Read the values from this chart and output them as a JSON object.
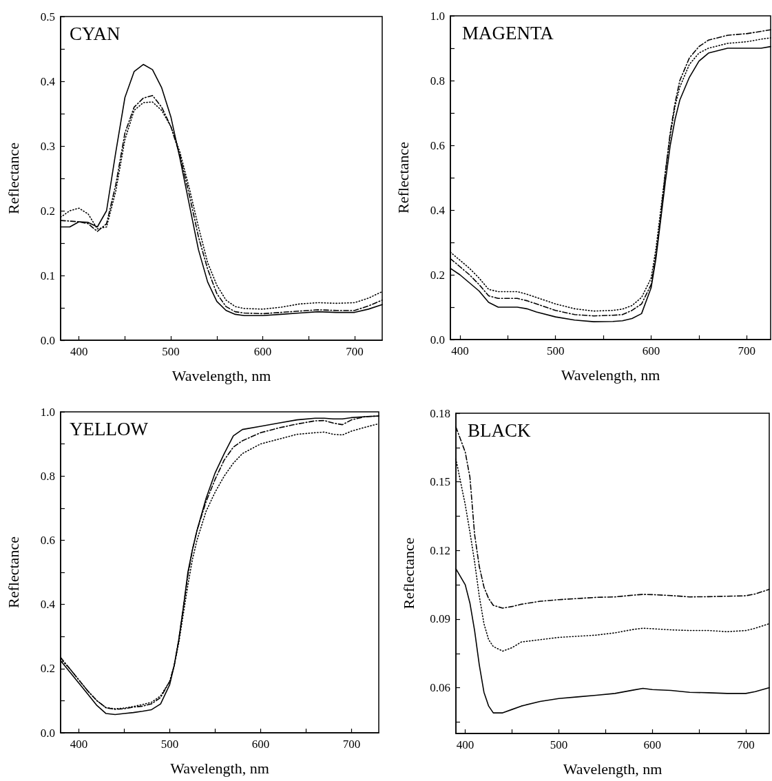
{
  "chart_data": [
    {
      "type": "line",
      "title": "CYAN",
      "xlabel": "Wavelength, nm",
      "ylabel": "Reflectance",
      "marker": "none",
      "x": [
        380,
        390,
        400,
        410,
        420,
        430,
        440,
        450,
        460,
        470,
        480,
        490,
        500,
        510,
        520,
        530,
        540,
        550,
        560,
        570,
        580,
        600,
        620,
        640,
        660,
        680,
        700,
        715,
        730
      ],
      "series": [
        {
          "color": "#000000",
          "line_style": "solid",
          "values": [
            0.175,
            0.175,
            0.183,
            0.182,
            0.175,
            0.2,
            0.29,
            0.375,
            0.415,
            0.426,
            0.418,
            0.39,
            0.345,
            0.28,
            0.21,
            0.14,
            0.09,
            0.06,
            0.046,
            0.04,
            0.038,
            0.038,
            0.04,
            0.042,
            0.044,
            0.043,
            0.043,
            0.048,
            0.055
          ]
        },
        {
          "color": "#000000",
          "line_style": "dashed",
          "values": [
            0.185,
            0.184,
            0.183,
            0.18,
            0.168,
            0.18,
            0.24,
            0.32,
            0.36,
            0.374,
            0.378,
            0.36,
            0.33,
            0.285,
            0.225,
            0.16,
            0.11,
            0.072,
            0.052,
            0.044,
            0.042,
            0.041,
            0.043,
            0.045,
            0.047,
            0.046,
            0.046,
            0.053,
            0.062
          ]
        },
        {
          "color": "#000000",
          "line_style": "dotted",
          "values": [
            0.19,
            0.2,
            0.204,
            0.195,
            0.172,
            0.175,
            0.23,
            0.31,
            0.355,
            0.367,
            0.368,
            0.355,
            0.33,
            0.29,
            0.235,
            0.175,
            0.12,
            0.085,
            0.062,
            0.052,
            0.049,
            0.048,
            0.051,
            0.056,
            0.058,
            0.057,
            0.058,
            0.065,
            0.075
          ]
        }
      ],
      "xlim": [
        380,
        730
      ],
      "xticks": [
        400,
        {
          "value": 450,
          "label": null
        },
        500,
        {
          "value": 550,
          "label": null
        },
        600,
        {
          "value": 650,
          "label": null
        },
        700
      ],
      "ylim": [
        0,
        0.5
      ],
      "yticks": [
        {
          "value": 0,
          "label": "0.0"
        },
        {
          "value": 0.05,
          "label": null
        },
        0.1,
        {
          "value": 0.15,
          "label": null
        },
        0.2,
        {
          "value": 0.25,
          "label": null
        },
        0.3,
        {
          "value": 0.35,
          "label": null
        },
        0.4,
        {
          "value": 0.45,
          "label": null
        },
        0.5
      ]
    },
    {
      "type": "line",
      "title": "MAGENTA",
      "xlabel": "Wavelength, nm",
      "ylabel": "Reflectance",
      "marker": "none",
      "x": [
        390,
        400,
        410,
        420,
        430,
        440,
        460,
        470,
        480,
        500,
        520,
        540,
        560,
        570,
        580,
        590,
        600,
        605,
        610,
        615,
        620,
        625,
        630,
        640,
        650,
        660,
        680,
        700,
        715,
        725
      ],
      "series": [
        {
          "color": "#000000",
          "line_style": "solid",
          "values": [
            0.22,
            0.2,
            0.175,
            0.15,
            0.115,
            0.1,
            0.1,
            0.095,
            0.085,
            0.07,
            0.06,
            0.055,
            0.056,
            0.058,
            0.065,
            0.08,
            0.16,
            0.25,
            0.37,
            0.49,
            0.6,
            0.68,
            0.74,
            0.81,
            0.86,
            0.885,
            0.9,
            0.9,
            0.9,
            0.905
          ]
        },
        {
          "color": "#000000",
          "line_style": "dashed",
          "values": [
            0.25,
            0.225,
            0.2,
            0.17,
            0.135,
            0.127,
            0.127,
            0.12,
            0.11,
            0.09,
            0.077,
            0.073,
            0.075,
            0.077,
            0.09,
            0.11,
            0.17,
            0.26,
            0.38,
            0.52,
            0.64,
            0.73,
            0.8,
            0.87,
            0.905,
            0.925,
            0.94,
            0.945,
            0.952,
            0.957
          ]
        },
        {
          "color": "#000000",
          "line_style": "dotted",
          "values": [
            0.27,
            0.245,
            0.22,
            0.19,
            0.155,
            0.148,
            0.148,
            0.14,
            0.13,
            0.11,
            0.095,
            0.088,
            0.09,
            0.094,
            0.105,
            0.13,
            0.19,
            0.28,
            0.4,
            0.52,
            0.63,
            0.72,
            0.78,
            0.85,
            0.885,
            0.9,
            0.915,
            0.92,
            0.928,
            0.932
          ]
        }
      ],
      "xlim": [
        390,
        725
      ],
      "xticks": [
        400,
        {
          "value": 450,
          "label": null
        },
        500,
        {
          "value": 550,
          "label": null
        },
        600,
        {
          "value": 650,
          "label": null
        },
        700
      ],
      "ylim": [
        0,
        1
      ],
      "yticks": [
        {
          "value": 0,
          "label": "0.0"
        },
        {
          "value": 0.1,
          "label": null
        },
        0.2,
        {
          "value": 0.3,
          "label": null
        },
        0.4,
        {
          "value": 0.5,
          "label": null
        },
        0.6,
        {
          "value": 0.7,
          "label": null
        },
        0.8,
        {
          "value": 0.9,
          "label": null
        },
        {
          "value": 1,
          "label": "1.0"
        }
      ]
    },
    {
      "type": "line",
      "title": "YELLOW",
      "xlabel": "Wavelength, nm",
      "ylabel": "Reflectance",
      "marker": "none",
      "x": [
        380,
        390,
        400,
        410,
        420,
        430,
        440,
        450,
        460,
        470,
        480,
        490,
        500,
        505,
        510,
        515,
        520,
        525,
        530,
        540,
        550,
        560,
        570,
        580,
        600,
        620,
        640,
        660,
        670,
        680,
        690,
        700,
        715,
        730
      ],
      "series": [
        {
          "color": "#000000",
          "line_style": "solid",
          "values": [
            0.225,
            0.19,
            0.155,
            0.12,
            0.085,
            0.06,
            0.057,
            0.06,
            0.063,
            0.067,
            0.072,
            0.09,
            0.15,
            0.21,
            0.29,
            0.39,
            0.5,
            0.57,
            0.63,
            0.73,
            0.81,
            0.87,
            0.925,
            0.945,
            0.955,
            0.965,
            0.975,
            0.98,
            0.98,
            0.978,
            0.978,
            0.982,
            0.985,
            0.987
          ]
        },
        {
          "color": "#000000",
          "line_style": "dashed",
          "values": [
            0.235,
            0.2,
            0.165,
            0.13,
            0.1,
            0.078,
            0.073,
            0.075,
            0.08,
            0.083,
            0.09,
            0.11,
            0.16,
            0.21,
            0.29,
            0.39,
            0.49,
            0.57,
            0.63,
            0.72,
            0.79,
            0.85,
            0.89,
            0.91,
            0.935,
            0.95,
            0.962,
            0.972,
            0.973,
            0.965,
            0.96,
            0.975,
            0.985,
            0.987
          ]
        },
        {
          "color": "#000000",
          "line_style": "dotted",
          "values": [
            0.23,
            0.2,
            0.165,
            0.13,
            0.1,
            0.078,
            0.075,
            0.077,
            0.082,
            0.088,
            0.095,
            0.115,
            0.16,
            0.21,
            0.28,
            0.37,
            0.46,
            0.54,
            0.6,
            0.69,
            0.75,
            0.8,
            0.84,
            0.87,
            0.9,
            0.915,
            0.93,
            0.935,
            0.937,
            0.93,
            0.928,
            0.94,
            0.952,
            0.963
          ]
        }
      ],
      "xlim": [
        380,
        730
      ],
      "xticks": [
        400,
        {
          "value": 450,
          "label": null
        },
        500,
        {
          "value": 550,
          "label": null
        },
        600,
        {
          "value": 650,
          "label": null
        },
        700
      ],
      "ylim": [
        0,
        1
      ],
      "yticks": [
        {
          "value": 0,
          "label": "0.0"
        },
        {
          "value": 0.1,
          "label": null
        },
        0.2,
        {
          "value": 0.3,
          "label": null
        },
        0.4,
        {
          "value": 0.5,
          "label": null
        },
        0.6,
        {
          "value": 0.7,
          "label": null
        },
        0.8,
        {
          "value": 0.9,
          "label": null
        },
        {
          "value": 1,
          "label": "1.0"
        }
      ]
    },
    {
      "type": "line",
      "title": "BLACK",
      "xlabel": "Wavelength, nm",
      "ylabel": "Reflectance",
      "marker": "none",
      "x": [
        390,
        400,
        405,
        410,
        415,
        420,
        425,
        430,
        440,
        450,
        460,
        480,
        500,
        520,
        540,
        560,
        580,
        590,
        600,
        620,
        640,
        660,
        680,
        700,
        710,
        725
      ],
      "series": [
        {
          "color": "#000000",
          "line_style": "solid",
          "values": [
            0.112,
            0.105,
            0.097,
            0.085,
            0.07,
            0.058,
            0.052,
            0.049,
            0.049,
            0.0505,
            0.052,
            0.054,
            0.0553,
            0.056,
            0.0567,
            0.0575,
            0.059,
            0.0597,
            0.0592,
            0.0588,
            0.058,
            0.0578,
            0.0575,
            0.0575,
            0.0583,
            0.06
          ]
        },
        {
          "color": "#000000",
          "line_style": "dashed",
          "values": [
            0.174,
            0.163,
            0.152,
            0.127,
            0.113,
            0.104,
            0.099,
            0.096,
            0.0948,
            0.0955,
            0.0965,
            0.0978,
            0.0985,
            0.099,
            0.0995,
            0.0997,
            0.1005,
            0.1008,
            0.1007,
            0.1003,
            0.0997,
            0.0998,
            0.1,
            0.1002,
            0.101,
            0.103
          ]
        },
        {
          "color": "#000000",
          "line_style": "dotted",
          "values": [
            0.16,
            0.14,
            0.128,
            0.115,
            0.1,
            0.088,
            0.081,
            0.078,
            0.076,
            0.0775,
            0.08,
            0.081,
            0.082,
            0.0825,
            0.083,
            0.084,
            0.0855,
            0.086,
            0.0858,
            0.0853,
            0.085,
            0.085,
            0.0845,
            0.085,
            0.086,
            0.088
          ]
        }
      ],
      "xlim": [
        390,
        725
      ],
      "xticks": [
        400,
        {
          "value": 450,
          "label": null
        },
        500,
        {
          "value": 550,
          "label": null
        },
        600,
        {
          "value": 650,
          "label": null
        },
        700
      ],
      "ylim": [
        0.04,
        0.18
      ],
      "yticks": [
        {
          "value": 0.045,
          "label": null
        },
        0.06,
        {
          "value": 0.075,
          "label": null
        },
        0.09,
        {
          "value": 0.105,
          "label": null
        },
        0.12,
        {
          "value": 0.135,
          "label": null
        },
        0.15,
        {
          "value": 0.165,
          "label": null
        },
        0.18
      ]
    }
  ]
}
